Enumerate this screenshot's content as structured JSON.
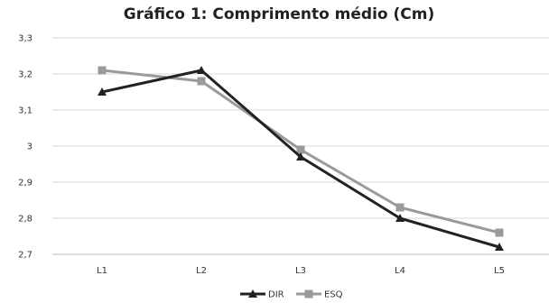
{
  "chart_data": {
    "type": "line",
    "title": "Gráfico 1: Comprimento médio (Cm)",
    "xlabel": "",
    "ylabel": "",
    "categories": [
      "L1",
      "L2",
      "L3",
      "L4",
      "L5"
    ],
    "ylim": [
      2.7,
      3.3
    ],
    "yticks": [
      "3,3",
      "3,2",
      "3,1",
      "3",
      "2,9",
      "2,8",
      "2,7"
    ],
    "ytick_values": [
      3.3,
      3.2,
      3.1,
      3.0,
      2.9,
      2.8,
      2.7
    ],
    "grid": "horizontal",
    "legend_position": "bottom",
    "series": [
      {
        "name": "DIR",
        "values": [
          3.15,
          3.21,
          2.97,
          2.8,
          2.72
        ],
        "color": "#222222",
        "marker": "triangle"
      },
      {
        "name": "ESQ",
        "values": [
          3.21,
          3.18,
          2.99,
          2.83,
          2.76
        ],
        "color": "#9a9a9a",
        "marker": "square"
      }
    ]
  }
}
